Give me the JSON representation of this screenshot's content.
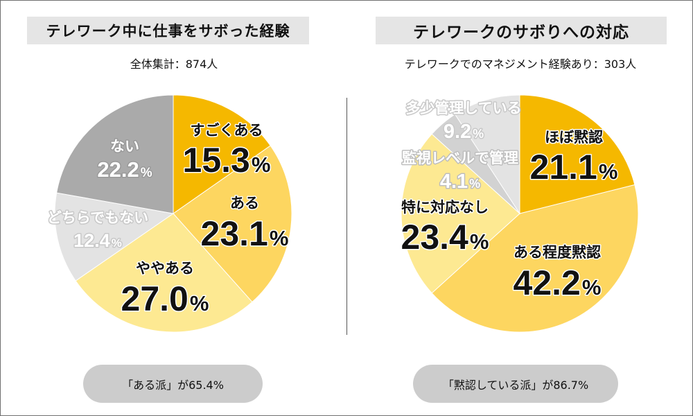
{
  "charts": {
    "left": {
      "title": "テレワーク中に仕事をサボった経験",
      "subtitle": "全体集計：874人",
      "summary": "「ある派」が65.4%"
    },
    "right": {
      "title": "テレワークのサボりへの対応",
      "subtitle": "テレワークでのマネジメント経験あり：303人",
      "summary": "「黙認している派」が86.7%"
    }
  },
  "chart_data": [
    {
      "type": "pie",
      "title": "テレワーク中に仕事をサボった経験",
      "subtitle": "全体集計：874人",
      "unit": "%",
      "start": "12 o'clock",
      "direction": "clockwise",
      "slices": [
        {
          "label": "すごくある",
          "value": 15.3,
          "value_text": "15.3",
          "color": "#f5b800"
        },
        {
          "label": "ある",
          "value": 23.1,
          "value_text": "23.1",
          "color": "#fdd660"
        },
        {
          "label": "ややある",
          "value": 27.0,
          "value_text": "27.0",
          "color": "#fde992"
        },
        {
          "label": "どちらでもない",
          "value": 12.4,
          "value_text": "12.4",
          "color": "#e3e3e3"
        },
        {
          "label": "ない",
          "value": 22.2,
          "value_text": "22.2",
          "color": "#aaaaaa"
        }
      ]
    },
    {
      "type": "pie",
      "title": "テレワークのサボりへの対応",
      "subtitle": "テレワークでのマネジメント経験あり：303人",
      "unit": "%",
      "start": "12 o'clock",
      "direction": "clockwise",
      "slices": [
        {
          "label": "ほぼ黙認",
          "value": 21.1,
          "value_text": "21.1",
          "color": "#f5b800"
        },
        {
          "label": "ある程度黙認",
          "value": 42.2,
          "value_text": "42.2",
          "color": "#fdd660"
        },
        {
          "label": "特に対応なし",
          "value": 23.4,
          "value_text": "23.4",
          "color": "#fde992"
        },
        {
          "label": "監視レベルで管理",
          "value": 4.1,
          "value_text": "4.1",
          "color": "#d2d2d2"
        },
        {
          "label": "多少管理している",
          "value": 9.2,
          "value_text": "9.2",
          "color": "#e3e3e3"
        }
      ]
    }
  ]
}
